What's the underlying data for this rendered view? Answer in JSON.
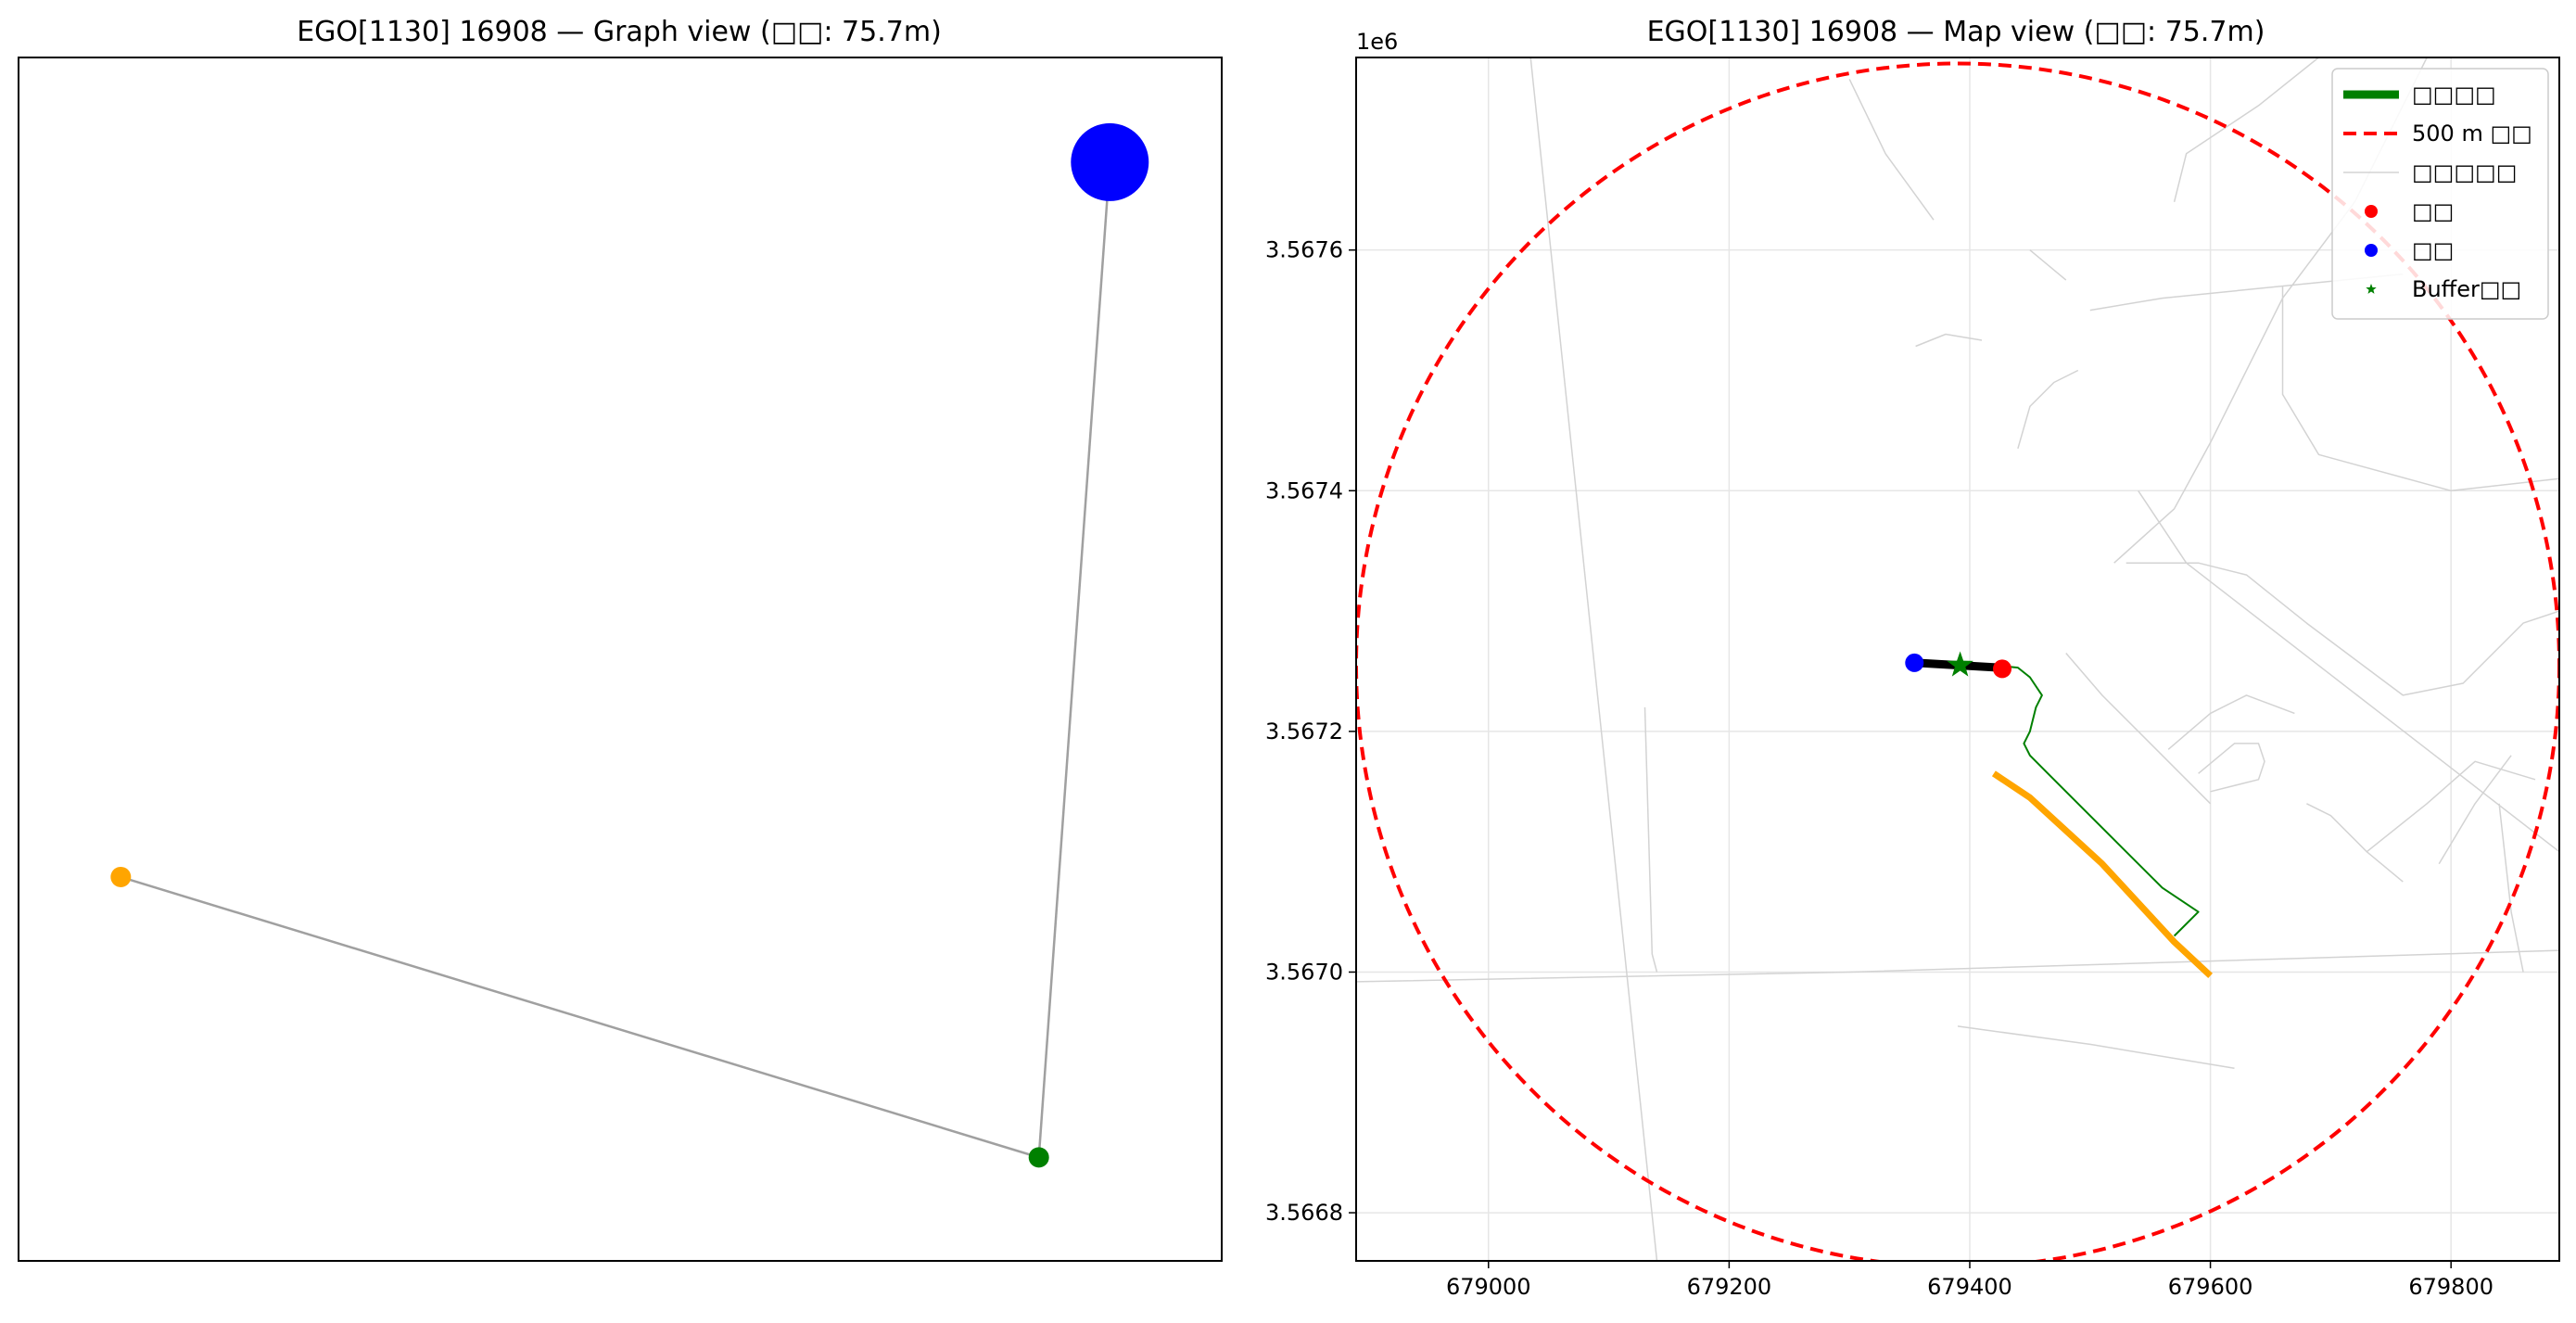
{
  "chart_data": [
    {
      "type": "network",
      "title": "EGO[1130] 16908 — Graph view (□□: 75.7m)",
      "nodes": [
        {
          "id": "blue",
          "x": 0.907,
          "y": 0.913,
          "size": "large",
          "color": "#0000ff"
        },
        {
          "id": "orange",
          "x": 0.085,
          "y": 0.319,
          "size": "small",
          "color": "#ffa500"
        },
        {
          "id": "green",
          "x": 0.848,
          "y": 0.086,
          "size": "small",
          "color": "#008000"
        }
      ],
      "edges": [
        {
          "from": "orange",
          "to": "green"
        },
        {
          "from": "green",
          "to": "blue"
        }
      ],
      "edge_color": "#a0a0a0",
      "axes": "off"
    },
    {
      "type": "line",
      "title": "EGO[1130] 16908 — Map view (□□: 75.7m)",
      "xlim": [
        678890,
        679890
      ],
      "ylim": [
        3566760,
        3567760
      ],
      "x_ticks": [
        679000,
        679200,
        679400,
        679600,
        679800
      ],
      "x_tick_labels": [
        "679000",
        "679200",
        "679400",
        "679600",
        "679800"
      ],
      "y_ticks": [
        3566800,
        3567000,
        3567200,
        3567400,
        3567600
      ],
      "y_tick_labels": [
        "3.5668",
        "3.5670",
        "3.5672",
        "3.5674",
        "3.5676"
      ],
      "y_offset_label": "1e6",
      "grid": true,
      "legend_position": "top-right",
      "legend": [
        {
          "label": "□□□□",
          "kind": "thick-line",
          "color": "#008000"
        },
        {
          "label": "500 m □□",
          "kind": "dashed-line",
          "color": "#ff0000"
        },
        {
          "label": "□□□□□",
          "kind": "thin-line",
          "color": "#d3d3d3"
        },
        {
          "label": "□□",
          "kind": "dot",
          "color": "#ff0000"
        },
        {
          "label": "□□",
          "kind": "dot",
          "color": "#0000ff"
        },
        {
          "label": "Buffer□□",
          "kind": "star",
          "color": "#008000"
        }
      ],
      "circle": {
        "cx": 679390,
        "cy": 3567255,
        "r": 500,
        "color": "#ff0000"
      },
      "series": [
        {
          "kind": "road",
          "color": "#d3d3d3",
          "points": [
            [
              678890,
              3566992
            ],
            [
              679300,
              3567000
            ],
            [
              679890,
              3567018
            ]
          ]
        },
        {
          "kind": "road",
          "color": "#d3d3d3",
          "points": [
            [
              679035,
              3567760
            ],
            [
              679140,
              3566760
            ]
          ]
        },
        {
          "kind": "road",
          "color": "#d3d3d3",
          "points": [
            [
              679130,
              3567220
            ],
            [
              679136,
              3567015
            ],
            [
              679140,
              3567000
            ]
          ]
        },
        {
          "kind": "road",
          "color": "#d3d3d3",
          "points": [
            [
              679300,
              3567742
            ],
            [
              679330,
              3567680
            ],
            [
              679370,
              3567625
            ]
          ]
        },
        {
          "kind": "road",
          "color": "#d3d3d3",
          "points": [
            [
              679690,
              3567760
            ],
            [
              679640,
              3567720
            ],
            [
              679580,
              3567680
            ],
            [
              679570,
              3567640
            ]
          ]
        },
        {
          "kind": "road",
          "color": "#d3d3d3",
          "points": [
            [
              679450,
              3567600
            ],
            [
              679480,
              3567575
            ]
          ]
        },
        {
          "kind": "road",
          "color": "#d3d3d3",
          "points": [
            [
              679500,
              3567550
            ],
            [
              679560,
              3567560
            ],
            [
              679760,
              3567580
            ]
          ]
        },
        {
          "kind": "road",
          "color": "#d3d3d3",
          "points": [
            [
              679440,
              3567435
            ],
            [
              679450,
              3567470
            ],
            [
              679470,
              3567490
            ],
            [
              679490,
              3567500
            ]
          ]
        },
        {
          "kind": "road",
          "color": "#d3d3d3",
          "points": [
            [
              679660,
              3567570
            ],
            [
              679660,
              3567480
            ],
            [
              679690,
              3567430
            ],
            [
              679800,
              3567400
            ],
            [
              679890,
              3567410
            ]
          ]
        },
        {
          "kind": "road",
          "color": "#d3d3d3",
          "points": [
            [
              679780,
              3567760
            ],
            [
              679720,
              3567640
            ],
            [
              679660,
              3567560
            ],
            [
              679640,
              3567520
            ],
            [
              679600,
              3567440
            ],
            [
              679570,
              3567385
            ],
            [
              679520,
              3567340
            ]
          ]
        },
        {
          "kind": "road",
          "color": "#d3d3d3",
          "points": [
            [
              679530,
              3567340
            ],
            [
              679590,
              3567340
            ],
            [
              679630,
              3567330
            ],
            [
              679680,
              3567290
            ],
            [
              679720,
              3567260
            ],
            [
              679760,
              3567230
            ],
            [
              679810,
              3567240
            ],
            [
              679860,
              3567290
            ],
            [
              679890,
              3567300
            ]
          ]
        },
        {
          "kind": "road",
          "color": "#d3d3d3",
          "points": [
            [
              679540,
              3567400
            ],
            [
              679580,
              3567340
            ],
            [
              679890,
              3567100
            ]
          ]
        },
        {
          "kind": "road",
          "color": "#d3d3d3",
          "points": [
            [
              679480,
              3567265
            ],
            [
              679510,
              3567230
            ],
            [
              679560,
              3567180
            ],
            [
              679600,
              3567140
            ]
          ]
        },
        {
          "kind": "road",
          "color": "#d3d3d3",
          "points": [
            [
              679565,
              3567185
            ],
            [
              679600,
              3567215
            ],
            [
              679630,
              3567230
            ],
            [
              679670,
              3567215
            ]
          ]
        },
        {
          "kind": "road",
          "color": "#d3d3d3",
          "points": [
            [
              679590,
              3567165
            ],
            [
              679620,
              3567190
            ],
            [
              679640,
              3567190
            ],
            [
              679645,
              3567175
            ],
            [
              679640,
              3567160
            ],
            [
              679600,
              3567150
            ]
          ]
        },
        {
          "kind": "road",
          "color": "#d3d3d3",
          "points": [
            [
              679680,
              3567140
            ],
            [
              679700,
              3567130
            ],
            [
              679730,
              3567100
            ],
            [
              679760,
              3567075
            ]
          ]
        },
        {
          "kind": "road",
          "color": "#d3d3d3",
          "points": [
            [
              679730,
              3567100
            ],
            [
              679780,
              3567140
            ],
            [
              679820,
              3567175
            ],
            [
              679870,
              3567160
            ]
          ]
        },
        {
          "kind": "road",
          "color": "#d3d3d3",
          "points": [
            [
              679790,
              3567090
            ],
            [
              679820,
              3567140
            ],
            [
              679850,
              3567180
            ]
          ]
        },
        {
          "kind": "road",
          "color": "#d3d3d3",
          "points": [
            [
              679840,
              3567140
            ],
            [
              679850,
              3567050
            ],
            [
              679860,
              3567000
            ]
          ]
        },
        {
          "kind": "road",
          "color": "#d3d3d3",
          "points": [
            [
              679390,
              3566955
            ],
            [
              679500,
              3566940
            ],
            [
              679620,
              3566920
            ]
          ]
        },
        {
          "kind": "road",
          "color": "#d3d3d3",
          "points": [
            [
              679355,
              3567520
            ],
            [
              679380,
              3567530
            ],
            [
              679410,
              3567525
            ]
          ]
        },
        {
          "kind": "route",
          "color": "#008000",
          "points": [
            [
              679390,
              3567255
            ],
            [
              679420,
              3567255
            ],
            [
              679440,
              3567253
            ],
            [
              679450,
              3567245
            ],
            [
              679460,
              3567230
            ],
            [
              679455,
              3567220
            ],
            [
              679450,
              3567200
            ],
            [
              679445,
              3567190
            ],
            [
              679450,
              3567180
            ],
            [
              679465,
              3567165
            ],
            [
              679485,
              3567145
            ],
            [
              679520,
              3567110
            ],
            [
              679560,
              3567070
            ],
            [
              679590,
              3567050
            ],
            [
              679570,
              3567030
            ]
          ]
        },
        {
          "kind": "highlight",
          "color": "#ffa500",
          "points": [
            [
              679420,
              3567165
            ],
            [
              679450,
              3567145
            ],
            [
              679510,
              3567090
            ],
            [
              679570,
              3567025
            ],
            [
              679600,
              3566997
            ]
          ]
        },
        {
          "kind": "segment",
          "color": "#000000",
          "points": [
            [
              679355,
              3567257
            ],
            [
              679390,
              3567255
            ],
            [
              679425,
              3567253
            ]
          ]
        }
      ],
      "markers": [
        {
          "kind": "dot",
          "color": "#0000ff",
          "x": 679354,
          "y": 3567257
        },
        {
          "kind": "dot",
          "color": "#ff0000",
          "x": 679427,
          "y": 3567252
        },
        {
          "kind": "star",
          "color": "#008000",
          "x": 679392,
          "y": 3567255
        }
      ]
    }
  ]
}
